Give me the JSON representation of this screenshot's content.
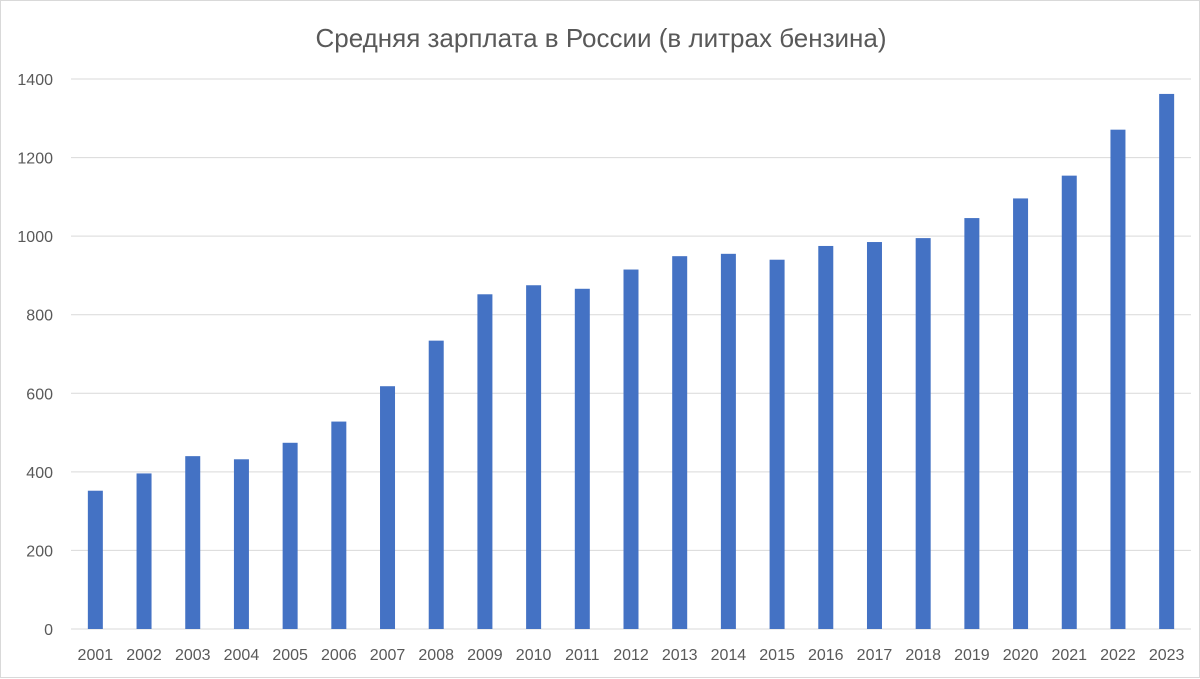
{
  "chart_data": {
    "type": "bar",
    "title": "Средняя зарплата в России (в литрах бензина)",
    "xlabel": "",
    "ylabel": "",
    "categories": [
      "2001",
      "2002",
      "2003",
      "2004",
      "2005",
      "2006",
      "2007",
      "2008",
      "2009",
      "2010",
      "2011",
      "2012",
      "2013",
      "2014",
      "2015",
      "2016",
      "2017",
      "2018",
      "2019",
      "2020",
      "2021",
      "2022",
      "2023"
    ],
    "values": [
      352,
      396,
      440,
      432,
      474,
      528,
      618,
      734,
      852,
      875,
      866,
      915,
      949,
      955,
      940,
      975,
      985,
      995,
      1046,
      1096,
      1154,
      1271,
      1362
    ],
    "ylim": [
      0,
      1400
    ],
    "yticks": [
      0,
      200,
      400,
      600,
      800,
      1000,
      1200,
      1400
    ],
    "grid": true,
    "legend": "none",
    "bar_color": "#4472c4"
  }
}
